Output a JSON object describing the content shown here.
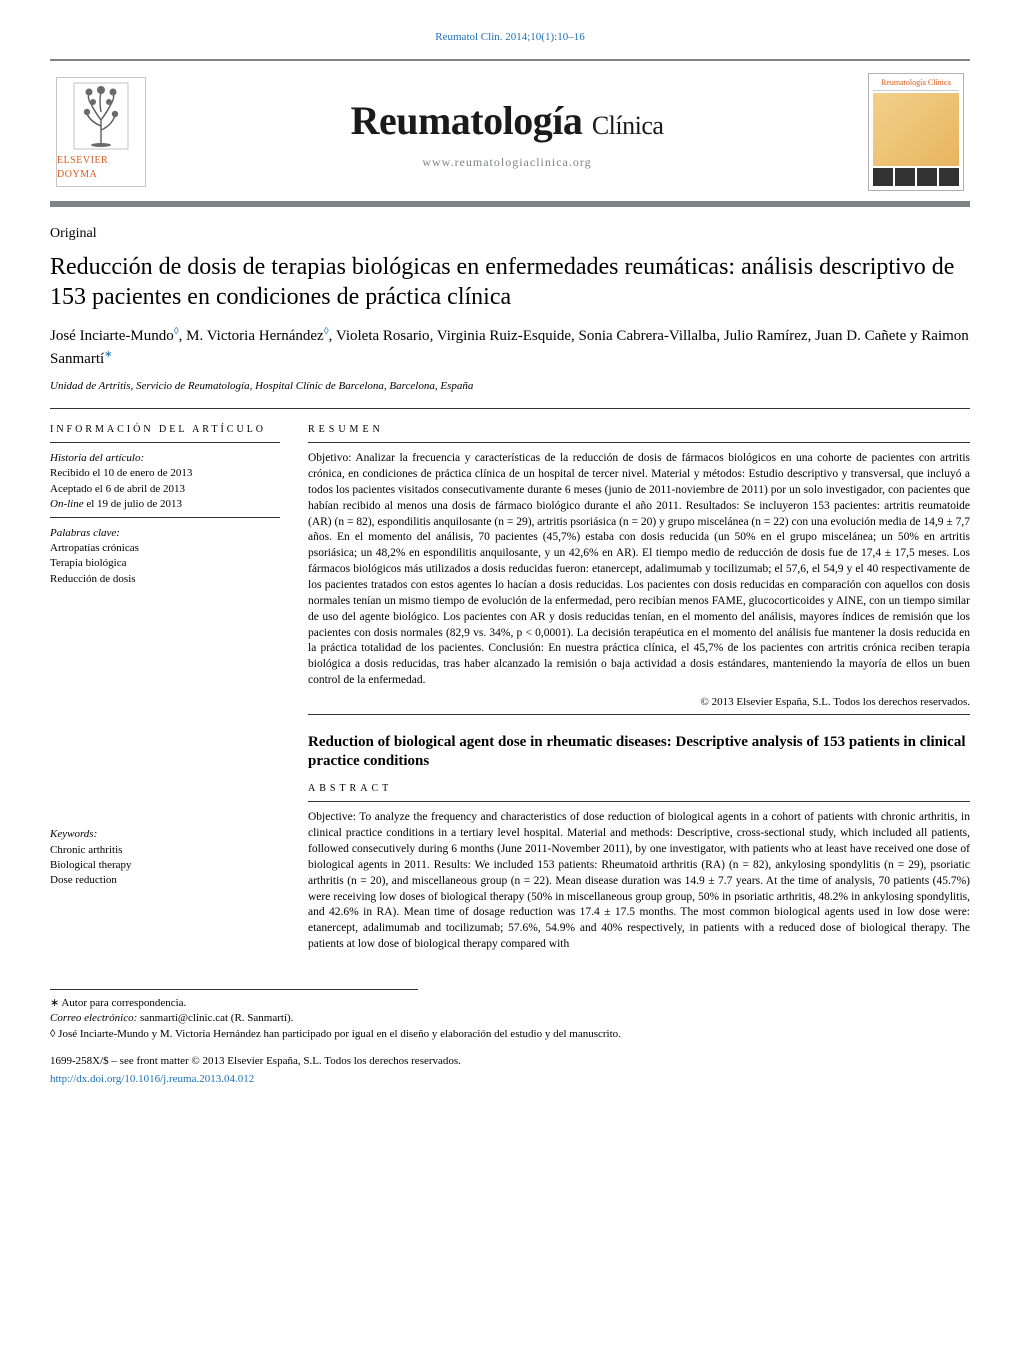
{
  "citation": "Reumatol Clin. 2014;10(1):10–16",
  "journal": {
    "title_main": "Reumatología",
    "title_sub": "Clínica",
    "url": "www.reumatologiaclinica.org",
    "publisher": "ELSEVIER DOYMA",
    "cover_label": "Reumatología Clínica"
  },
  "article": {
    "type": "Original",
    "title": "Reducción de dosis de terapias biológicas en enfermedades reumáticas: análisis descriptivo de 153 pacientes en condiciones de práctica clínica",
    "authors_html_parts": [
      {
        "name": "José Inciarte-Mundo",
        "mark": "◊"
      },
      {
        "name": "M. Victoria Hernández",
        "mark": "◊"
      },
      {
        "name": "Violeta Rosario",
        "mark": ""
      },
      {
        "name": "Virginia Ruiz-Esquide",
        "mark": ""
      },
      {
        "name": "Sonia Cabrera-Villalba",
        "mark": ""
      },
      {
        "name": "Julio Ramírez",
        "mark": ""
      },
      {
        "name": "Juan D. Cañete",
        "mark": ""
      },
      {
        "name": "Raimon Sanmartí",
        "mark": "*",
        "last": true
      }
    ],
    "affiliation": "Unidad de Artritis, Servicio de Reumatología, Hospital Clínic de Barcelona, Barcelona, España"
  },
  "info_box": {
    "heading": "INFORMACIÓN DEL ARTÍCULO",
    "history_label": "Historia del artículo:",
    "history_lines": [
      "Recibido el 10 de enero de 2013",
      "Aceptado el 6 de abril de 2013",
      "On-line el 19 de julio de 2013"
    ],
    "keywords_es_label": "Palabras clave:",
    "keywords_es": [
      "Artropatías crónicas",
      "Terapia biológica",
      "Reducción de dosis"
    ],
    "keywords_en_label": "Keywords:",
    "keywords_en": [
      "Chronic arthritis",
      "Biological therapy",
      "Dose reduction"
    ]
  },
  "resumen": {
    "heading": "RESUMEN",
    "body": "Objetivo: Analizar la frecuencia y características de la reducción de dosis de fármacos biológicos en una cohorte de pacientes con artritis crónica, en condiciones de práctica clínica de un hospital de tercer nivel. Material y métodos: Estudio descriptivo y transversal, que incluyó a todos los pacientes visitados consecutivamente durante 6 meses (junio de 2011-noviembre de 2011) por un solo investigador, con pacientes que habían recibido al menos una dosis de fármaco biológico durante el año 2011. Resultados: Se incluyeron 153 pacientes: artritis reumatoide (AR) (n = 82), espondilitis anquilosante (n = 29), artritis psoriásica (n = 20) y grupo miscelánea (n = 22) con una evolución media de 14,9 ± 7,7 años. En el momento del análisis, 70 pacientes (45,7%) estaba con dosis reducida (un 50% en el grupo miscelánea; un 50% en artritis psoriásica; un 48,2% en espondilitis anquilosante, y un 42,6% en AR). El tiempo medio de reducción de dosis fue de 17,4 ± 17,5 meses. Los fármacos biológicos más utilizados a dosis reducidas fueron: etanercept, adalimumab y tocilizumab; el 57,6, el 54,9 y el 40 respectivamente de los pacientes tratados con estos agentes lo hacían a dosis reducidas. Los pacientes con dosis reducidas en comparación con aquellos con dosis normales tenían un mismo tiempo de evolución de la enfermedad, pero recibían menos FAME, glucocorticoides y AINE, con un tiempo similar de uso del agente biológico. Los pacientes con AR y dosis reducidas tenían, en el momento del análisis, mayores índices de remisión que los pacientes con dosis normales (82,9 vs. 34%, p < 0,0001). La decisión terapéutica en el momento del análisis fue mantener la dosis reducida en la práctica totalidad de los pacientes. Conclusión: En nuestra práctica clínica, el 45,7% de los pacientes con artritis crónica reciben terapia biológica a dosis reducidas, tras haber alcanzado la remisión o baja actividad a dosis estándares, manteniendo la mayoría de ellos un buen control de la enfermedad.",
    "copyright": "© 2013 Elsevier España, S.L. Todos los derechos reservados."
  },
  "abstract_en": {
    "title": "Reduction of biological agent dose in rheumatic diseases: Descriptive analysis of 153 patients in clinical practice conditions",
    "heading": "ABSTRACT",
    "body": "Objective: To analyze the frequency and characteristics of dose reduction of biological agents in a cohort of patients with chronic arthritis, in clinical practice conditions in a tertiary level hospital. Material and methods: Descriptive, cross-sectional study, which included all patients, followed consecutively during 6 months (June 2011-November 2011), by one investigator, with patients who at least have received one dose of biological agents in 2011. Results: We included 153 patients: Rheumatoid arthritis (RA) (n = 82), ankylosing spondylitis (n = 29), psoriatic arthritis (n = 20), and miscellaneous group (n = 22). Mean disease duration was 14.9 ± 7.7 years. At the time of analysis, 70 patients (45.7%) were receiving low doses of biological therapy (50% in miscellaneous group group, 50% in psoriatic arthritis, 48.2% in ankylosing spondylitis, and 42.6% in RA). Mean time of dosage reduction was 17.4 ± 17.5 months. The most common biological agents used in low dose were: etanercept, adalimumab and tocilizumab; 57.6%, 54.9% and 40% respectively, in patients with a reduced dose of biological therapy. The patients at low dose of biological therapy compared with"
  },
  "footnotes": {
    "corr_label": "∗ Autor para correspondencia.",
    "email_label": "Correo electrónico:",
    "email": "sanmarti@clinic.cat",
    "email_suffix": "(R. Sanmartí).",
    "contrib": "◊ José Inciarte-Mundo y M. Victoria Hernández han participado por igual en el diseño y elaboración del estudio y del manuscrito.",
    "copyright_line": "1699-258X/$ – see front matter © 2013 Elsevier España, S.L. Todos los derechos reservados.",
    "doi": "http://dx.doi.org/10.1016/j.reuma.2013.04.012"
  },
  "colors": {
    "link": "#1a6fb5",
    "rule": "#808285",
    "accent": "#d85a1c"
  }
}
